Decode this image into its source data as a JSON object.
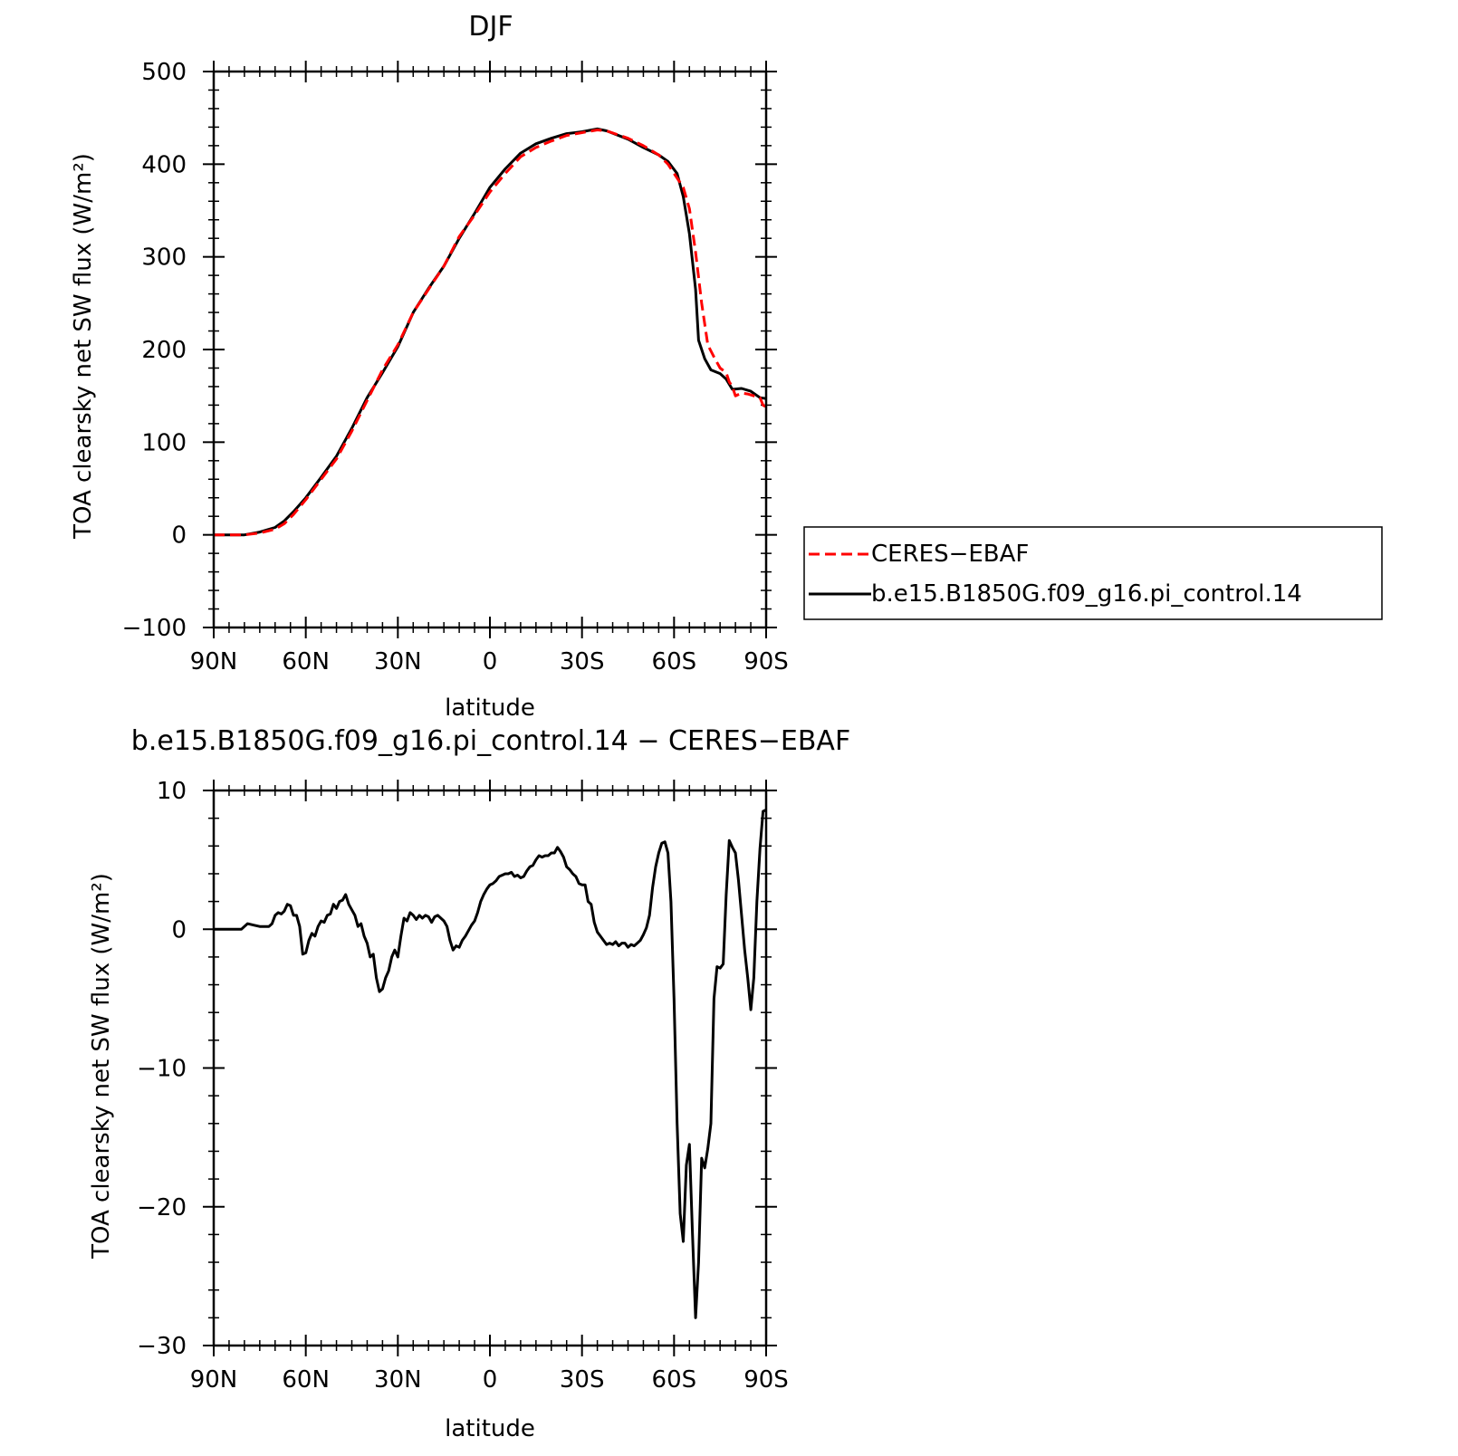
{
  "chart_data": [
    {
      "type": "line",
      "title": "DJF",
      "xlabel": "latitude",
      "ylabel": "TOA clearsky net SW flux (W/m²)",
      "xlim": [
        -90,
        90
      ],
      "ylim": [
        -100,
        500
      ],
      "x_direction": "north-to-south (90N left, 90S right)",
      "xticks": [
        -90,
        -60,
        -30,
        0,
        30,
        60,
        90
      ],
      "xtick_labels": [
        "90N",
        "60N",
        "30N",
        "0",
        "30S",
        "60S",
        "90S"
      ],
      "yticks": [
        -100,
        0,
        100,
        200,
        300,
        400,
        500
      ],
      "ytick_labels": [
        "−100",
        "0",
        "100",
        "200",
        "300",
        "400",
        "500"
      ],
      "legend_position": "right, outside plot",
      "series": [
        {
          "name": "CERES−EBAF",
          "color": "#ff0000",
          "style": "dashed",
          "points": [
            [
              -90,
              0
            ],
            [
              -85,
              0
            ],
            [
              -80,
              0
            ],
            [
              -75,
              2
            ],
            [
              -70,
              6
            ],
            [
              -67,
              12
            ],
            [
              -64,
              22
            ],
            [
              -60,
              38
            ],
            [
              -55,
              60
            ],
            [
              -50,
              82
            ],
            [
              -45,
              112
            ],
            [
              -40,
              145
            ],
            [
              -35,
              178
            ],
            [
              -30,
              205
            ],
            [
              -25,
              240
            ],
            [
              -20,
              265
            ],
            [
              -15,
              290
            ],
            [
              -10,
              322
            ],
            [
              -5,
              345
            ],
            [
              0,
              370
            ],
            [
              5,
              390
            ],
            [
              10,
              408
            ],
            [
              15,
              418
            ],
            [
              20,
              425
            ],
            [
              25,
              431
            ],
            [
              30,
              434
            ],
            [
              35,
              437
            ],
            [
              38,
              436
            ],
            [
              45,
              428
            ],
            [
              50,
              420
            ],
            [
              55,
              410
            ],
            [
              58,
              400
            ],
            [
              61,
              385
            ],
            [
              63,
              375
            ],
            [
              65,
              352
            ],
            [
              67,
              305
            ],
            [
              69,
              250
            ],
            [
              71,
              205
            ],
            [
              73,
              192
            ],
            [
              75,
              180
            ],
            [
              77,
              175
            ],
            [
              78,
              165
            ],
            [
              79,
              160
            ],
            [
              80,
              150
            ],
            [
              82,
              153
            ],
            [
              84,
              152
            ],
            [
              86,
              150
            ],
            [
              88,
              148
            ],
            [
              89,
              140
            ],
            [
              90,
              138
            ]
          ]
        },
        {
          "name": "b.e15.B1850G.f09_g16.pi_control.14",
          "color": "#000000",
          "style": "solid",
          "points": [
            [
              -90,
              0
            ],
            [
              -85,
              0
            ],
            [
              -80,
              0
            ],
            [
              -75,
              3
            ],
            [
              -70,
              8
            ],
            [
              -67,
              15
            ],
            [
              -64,
              25
            ],
            [
              -60,
              40
            ],
            [
              -55,
              62
            ],
            [
              -50,
              85
            ],
            [
              -45,
              115
            ],
            [
              -40,
              148
            ],
            [
              -35,
              175
            ],
            [
              -30,
              203
            ],
            [
              -25,
              240
            ],
            [
              -20,
              266
            ],
            [
              -15,
              290
            ],
            [
              -10,
              320
            ],
            [
              -5,
              347
            ],
            [
              0,
              375
            ],
            [
              5,
              395
            ],
            [
              10,
              412
            ],
            [
              15,
              422
            ],
            [
              20,
              428
            ],
            [
              25,
              433
            ],
            [
              30,
              435
            ],
            [
              35,
              438
            ],
            [
              38,
              436
            ],
            [
              45,
              427
            ],
            [
              50,
              418
            ],
            [
              55,
              410
            ],
            [
              58,
              403
            ],
            [
              61,
              390
            ],
            [
              63,
              365
            ],
            [
              65,
              325
            ],
            [
              67,
              265
            ],
            [
              68,
              210
            ],
            [
              70,
              190
            ],
            [
              72,
              178
            ],
            [
              75,
              174
            ],
            [
              77,
              168
            ],
            [
              79,
              157
            ],
            [
              82,
              158
            ],
            [
              85,
              155
            ],
            [
              88,
              148
            ],
            [
              90,
              147
            ]
          ]
        }
      ]
    },
    {
      "type": "line",
      "title": "b.e15.B1850G.f09_g16.pi_control.14 − CERES−EBAF",
      "xlabel": "latitude",
      "ylabel": "TOA clearsky net SW flux (W/m²)",
      "xlim": [
        -90,
        90
      ],
      "ylim": [
        -30,
        10
      ],
      "xticks": [
        -90,
        -60,
        -30,
        0,
        30,
        60,
        90
      ],
      "xtick_labels": [
        "90N",
        "60N",
        "30N",
        "0",
        "30S",
        "60S",
        "90S"
      ],
      "yticks": [
        -30,
        -20,
        -10,
        0,
        10
      ],
      "ytick_labels": [
        "−30",
        "−20",
        "−10",
        "0",
        "10"
      ],
      "series": [
        {
          "name": "difference",
          "color": "#000000",
          "style": "solid",
          "points": [
            [
              -90,
              0
            ],
            [
              -81,
              0
            ],
            [
              -80,
              0.2
            ],
            [
              -79,
              0.4
            ],
            [
              -77,
              0.3
            ],
            [
              -75,
              0.2
            ],
            [
              -72,
              0.2
            ],
            [
              -71,
              0.4
            ],
            [
              -70,
              1.0
            ],
            [
              -69,
              1.2
            ],
            [
              -68,
              1.1
            ],
            [
              -67,
              1.3
            ],
            [
              -66,
              1.8
            ],
            [
              -65,
              1.7
            ],
            [
              -64,
              1.0
            ],
            [
              -63,
              1.0
            ],
            [
              -62,
              0.2
            ],
            [
              -61,
              -1.8
            ],
            [
              -60,
              -1.7
            ],
            [
              -59,
              -0.8
            ],
            [
              -58,
              -0.3
            ],
            [
              -57,
              -0.5
            ],
            [
              -56,
              0.2
            ],
            [
              -55,
              0.6
            ],
            [
              -54,
              0.5
            ],
            [
              -53,
              1.0
            ],
            [
              -52,
              1.1
            ],
            [
              -51,
              1.8
            ],
            [
              -50,
              1.5
            ],
            [
              -49,
              2.0
            ],
            [
              -48,
              2.1
            ],
            [
              -47,
              2.5
            ],
            [
              -46,
              1.8
            ],
            [
              -45,
              1.4
            ],
            [
              -44,
              1.0
            ],
            [
              -43,
              0.2
            ],
            [
              -42,
              0.4
            ],
            [
              -41,
              -0.5
            ],
            [
              -40,
              -1.0
            ],
            [
              -39,
              -2.0
            ],
            [
              -38,
              -1.8
            ],
            [
              -37,
              -3.5
            ],
            [
              -36,
              -4.5
            ],
            [
              -35,
              -4.3
            ],
            [
              -34,
              -3.5
            ],
            [
              -33,
              -3.0
            ],
            [
              -32,
              -2.0
            ],
            [
              -31,
              -1.5
            ],
            [
              -30,
              -2.0
            ],
            [
              -29,
              -0.5
            ],
            [
              -28,
              0.8
            ],
            [
              -27,
              0.6
            ],
            [
              -26,
              1.2
            ],
            [
              -25,
              1.0
            ],
            [
              -24,
              0.7
            ],
            [
              -23,
              1.0
            ],
            [
              -22,
              0.8
            ],
            [
              -21,
              1.0
            ],
            [
              -20,
              0.9
            ],
            [
              -19,
              0.5
            ],
            [
              -18,
              0.9
            ],
            [
              -17,
              1.0
            ],
            [
              -16,
              0.8
            ],
            [
              -15,
              0.6
            ],
            [
              -14,
              0.2
            ],
            [
              -13,
              -0.8
            ],
            [
              -12,
              -1.5
            ],
            [
              -11,
              -1.2
            ],
            [
              -10,
              -1.3
            ],
            [
              -9,
              -0.8
            ],
            [
              -8,
              -0.5
            ],
            [
              -7,
              -0.1
            ],
            [
              -6,
              0.3
            ],
            [
              -5,
              0.6
            ],
            [
              -4,
              1.2
            ],
            [
              -3,
              2.0
            ],
            [
              -2,
              2.5
            ],
            [
              -1,
              2.9
            ],
            [
              0,
              3.2
            ],
            [
              1,
              3.3
            ],
            [
              2,
              3.5
            ],
            [
              3,
              3.8
            ],
            [
              4,
              3.9
            ],
            [
              5,
              4.0
            ],
            [
              6,
              4.0
            ],
            [
              7,
              4.1
            ],
            [
              8,
              3.8
            ],
            [
              9,
              3.9
            ],
            [
              10,
              3.7
            ],
            [
              11,
              3.8
            ],
            [
              12,
              4.2
            ],
            [
              13,
              4.5
            ],
            [
              14,
              4.6
            ],
            [
              15,
              5.0
            ],
            [
              16,
              5.3
            ],
            [
              17,
              5.2
            ],
            [
              18,
              5.3
            ],
            [
              19,
              5.3
            ],
            [
              20,
              5.5
            ],
            [
              21,
              5.5
            ],
            [
              22,
              5.9
            ],
            [
              23,
              5.6
            ],
            [
              24,
              5.2
            ],
            [
              25,
              4.5
            ],
            [
              26,
              4.3
            ],
            [
              27,
              4.0
            ],
            [
              28,
              3.8
            ],
            [
              29,
              3.3
            ],
            [
              30,
              3.2
            ],
            [
              31,
              3.2
            ],
            [
              32,
              2.0
            ],
            [
              33,
              1.8
            ],
            [
              34,
              0.5
            ],
            [
              35,
              -0.2
            ],
            [
              36,
              -0.5
            ],
            [
              37,
              -0.8
            ],
            [
              38,
              -1.1
            ],
            [
              39,
              -1.0
            ],
            [
              40,
              -1.1
            ],
            [
              41,
              -0.9
            ],
            [
              42,
              -1.2
            ],
            [
              43,
              -1.0
            ],
            [
              44,
              -1.0
            ],
            [
              45,
              -1.3
            ],
            [
              46,
              -1.1
            ],
            [
              47,
              -1.2
            ],
            [
              48,
              -1.0
            ],
            [
              49,
              -0.8
            ],
            [
              50,
              -0.4
            ],
            [
              51,
              0.1
            ],
            [
              52,
              1.0
            ],
            [
              53,
              3.0
            ],
            [
              54,
              4.5
            ],
            [
              55,
              5.5
            ],
            [
              56,
              6.2
            ],
            [
              57,
              6.3
            ],
            [
              58,
              5.5
            ],
            [
              59,
              2.0
            ],
            [
              60,
              -5.0
            ],
            [
              61,
              -14.0
            ],
            [
              62,
              -20.5
            ],
            [
              63,
              -22.5
            ],
            [
              64,
              -17.0
            ],
            [
              65,
              -15.5
            ],
            [
              66,
              -22.0
            ],
            [
              67,
              -28.0
            ],
            [
              68,
              -24.0
            ],
            [
              69,
              -16.5
            ],
            [
              70,
              -17.2
            ],
            [
              71,
              -15.8
            ],
            [
              72,
              -14.0
            ],
            [
              73,
              -5.0
            ],
            [
              74,
              -2.7
            ],
            [
              75,
              -2.8
            ],
            [
              76,
              -2.5
            ],
            [
              77,
              2.5
            ],
            [
              78,
              6.4
            ],
            [
              79,
              5.9
            ],
            [
              80,
              5.5
            ],
            [
              81,
              3.5
            ],
            [
              82,
              1.0
            ],
            [
              83,
              -1.5
            ],
            [
              84,
              -3.5
            ],
            [
              85,
              -5.8
            ],
            [
              86,
              -3.5
            ],
            [
              87,
              2.0
            ],
            [
              88,
              5.8
            ],
            [
              89,
              8.5
            ],
            [
              90,
              8.6
            ]
          ]
        }
      ]
    }
  ]
}
